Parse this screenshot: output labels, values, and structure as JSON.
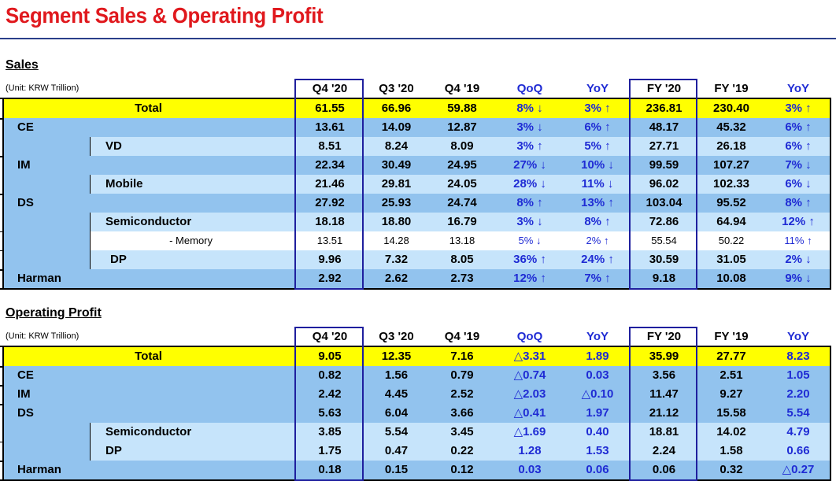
{
  "title": "Segment Sales & Operating Profit",
  "columns": [
    "Q4 '20",
    "Q3 '20",
    "Q4 '19",
    "QoQ",
    "YoY",
    "FY '20",
    "FY '19",
    "YoY"
  ],
  "sales": {
    "heading": "Sales",
    "unit": "(Unit: KRW Trillion)",
    "rows": [
      {
        "label": "Total",
        "values": [
          "61.55",
          "66.96",
          "59.88",
          "8% ↓",
          "3% ↑",
          "236.81",
          "230.40",
          "3% ↑"
        ]
      },
      {
        "label": "CE",
        "values": [
          "13.61",
          "14.09",
          "12.87",
          "3% ↓",
          "6% ↑",
          "48.17",
          "45.32",
          "6% ↑"
        ]
      },
      {
        "label": "VD",
        "values": [
          "8.51",
          "8.24",
          "8.09",
          "3% ↑",
          "5% ↑",
          "27.71",
          "26.18",
          "6% ↑"
        ]
      },
      {
        "label": "IM",
        "values": [
          "22.34",
          "30.49",
          "24.95",
          "27% ↓",
          "10% ↓",
          "99.59",
          "107.27",
          "7% ↓"
        ]
      },
      {
        "label": "Mobile",
        "values": [
          "21.46",
          "29.81",
          "24.05",
          "28% ↓",
          "11% ↓",
          "96.02",
          "102.33",
          "6% ↓"
        ]
      },
      {
        "label": "DS",
        "values": [
          "27.92",
          "25.93",
          "24.74",
          "8% ↑",
          "13% ↑",
          "103.04",
          "95.52",
          "8% ↑"
        ]
      },
      {
        "label": "Semiconductor",
        "values": [
          "18.18",
          "18.80",
          "16.79",
          "3% ↓",
          "8% ↑",
          "72.86",
          "64.94",
          "12% ↑"
        ]
      },
      {
        "label": "- Memory",
        "values": [
          "13.51",
          "14.28",
          "13.18",
          "5% ↓",
          "2% ↑",
          "55.54",
          "50.22",
          "11% ↑"
        ]
      },
      {
        "label": "DP",
        "values": [
          "9.96",
          "7.32",
          "8.05",
          "36% ↑",
          "24% ↑",
          "30.59",
          "31.05",
          "2% ↓"
        ]
      },
      {
        "label": "Harman",
        "values": [
          "2.92",
          "2.62",
          "2.73",
          "12% ↑",
          "7% ↑",
          "9.18",
          "10.08",
          "9% ↓"
        ]
      }
    ]
  },
  "operating_profit": {
    "heading": "Operating Profit",
    "unit": "(Unit: KRW Trillion)",
    "rows": [
      {
        "label": "Total",
        "values": [
          "9.05",
          "12.35",
          "7.16",
          "△3.31",
          "1.89",
          "35.99",
          "27.77",
          "8.23"
        ]
      },
      {
        "label": "CE",
        "values": [
          "0.82",
          "1.56",
          "0.79",
          "△0.74",
          "0.03",
          "3.56",
          "2.51",
          "1.05"
        ]
      },
      {
        "label": "IM",
        "values": [
          "2.42",
          "4.45",
          "2.52",
          "△2.03",
          "△0.10",
          "11.47",
          "9.27",
          "2.20"
        ]
      },
      {
        "label": "DS",
        "values": [
          "5.63",
          "6.04",
          "3.66",
          "△0.41",
          "1.97",
          "21.12",
          "15.58",
          "5.54"
        ]
      },
      {
        "label": "Semiconductor",
        "values": [
          "3.85",
          "5.54",
          "3.45",
          "△1.69",
          "0.40",
          "18.81",
          "14.02",
          "4.79"
        ]
      },
      {
        "label": "DP",
        "values": [
          "1.75",
          "0.47",
          "0.22",
          "1.28",
          "1.53",
          "2.24",
          "1.58",
          "0.66"
        ]
      },
      {
        "label": "Harman",
        "values": [
          "0.18",
          "0.15",
          "0.12",
          "0.03",
          "0.06",
          "0.06",
          "0.32",
          "△0.27"
        ]
      }
    ]
  },
  "colors": {
    "title_red": "#e0191e",
    "total_yellow": "#ffff00",
    "row_mid_blue": "#92c3ee",
    "row_light_blue": "#c6e4fb",
    "accent_blue": "#1f2bd4",
    "frame_navy": "#1f1f9e"
  }
}
